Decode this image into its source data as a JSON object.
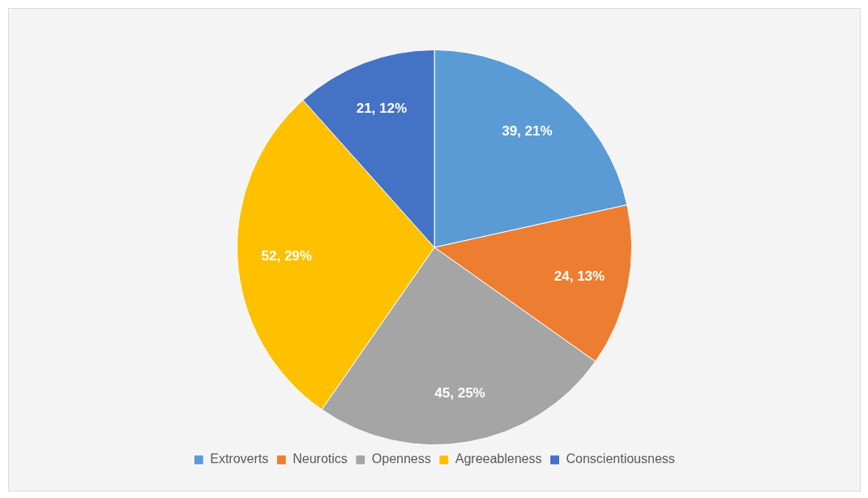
{
  "chart_data": {
    "type": "pie",
    "categories": [
      "Extroverts",
      "Neurotics",
      "Openness",
      "Agreeableness",
      "Conscientiousness"
    ],
    "values": [
      39,
      24,
      45,
      52,
      21
    ],
    "colors": [
      "#5b9bd5",
      "#ed7d31",
      "#a5a5a5",
      "#ffc000",
      "#4472c4"
    ],
    "value_labels": [
      "39, 21%",
      "24, 13%",
      "45, 25%",
      "52, 29%",
      "21, 12%"
    ],
    "legend": "bottom"
  }
}
